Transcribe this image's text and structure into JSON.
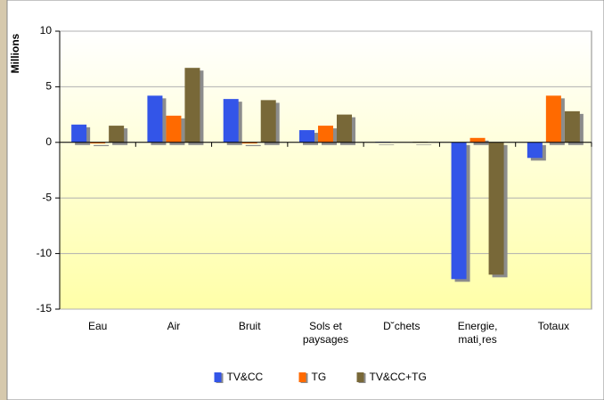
{
  "chart_data": {
    "type": "bar",
    "y_label": "Millions",
    "categories": [
      "Eau",
      "Air",
      "Bruit",
      "Sols et paysages",
      "D˘chets",
      "Energie, mati¸res",
      "Totaux"
    ],
    "series": [
      {
        "name": "TV&CC",
        "color": "#3355e8",
        "values": [
          1.6,
          4.2,
          3.9,
          1.1,
          0.05,
          -12.3,
          -1.4
        ]
      },
      {
        "name": "TG",
        "color": "#ff6a00",
        "values": [
          -0.1,
          2.4,
          -0.1,
          1.5,
          0,
          0.4,
          4.2
        ]
      },
      {
        "name": "TV&CC+TG",
        "color": "#786838",
        "values": [
          1.5,
          6.7,
          3.8,
          2.5,
          0.05,
          -11.9,
          2.8
        ]
      }
    ],
    "ylim": [
      -15,
      10
    ],
    "yticks": [
      -15,
      -10,
      -5,
      0,
      5,
      10
    ],
    "grid": true,
    "legend": "bottom"
  }
}
